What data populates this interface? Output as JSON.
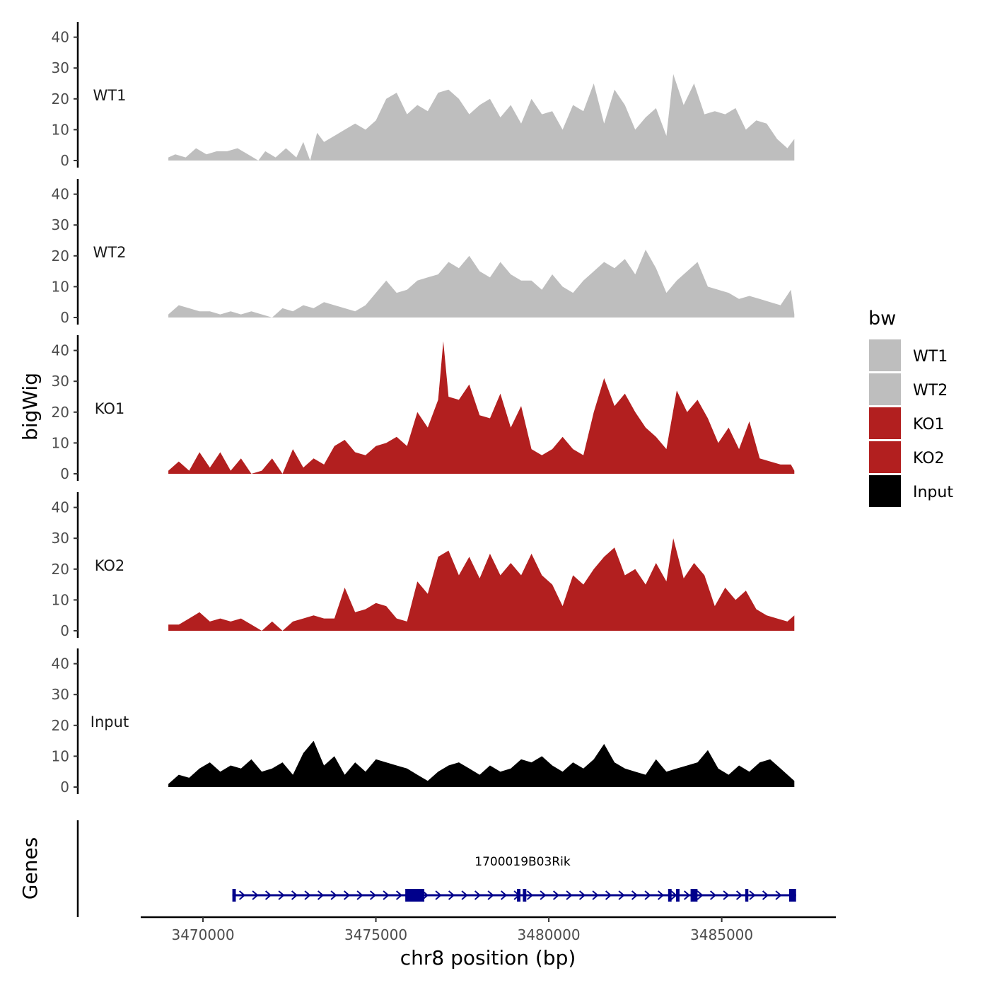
{
  "chart_data": {
    "type": "area",
    "title": "",
    "xlabel": "chr8 position (bp)",
    "ylabel": "bigWig",
    "genes_label": "Genes",
    "chromosome": "chr8",
    "xlim": [
      3468200,
      3488300
    ],
    "ylim": [
      0,
      45
    ],
    "y_ticks": [
      "0",
      "10",
      "20",
      "30",
      "40"
    ],
    "x_ticks": [
      {
        "value": 3470000,
        "label": "3470000"
      },
      {
        "value": 3475000,
        "label": "3475000"
      },
      {
        "value": 3480000,
        "label": "3480000"
      },
      {
        "value": 3485000,
        "label": "3485000"
      }
    ],
    "legend": {
      "title": "bw",
      "position": "right",
      "entries": [
        {
          "label": "WT1",
          "color": "#bebebe"
        },
        {
          "label": "WT2",
          "color": "#bebebe"
        },
        {
          "label": "KO1",
          "color": "#b21f1f"
        },
        {
          "label": "KO2",
          "color": "#b21f1f"
        },
        {
          "label": "Input",
          "color": "#000000"
        }
      ]
    },
    "tracks": [
      {
        "name": "WT1",
        "label": "WT1",
        "color": "#bebebe",
        "x": [
          3469000,
          3469200,
          3469500,
          3469800,
          3470100,
          3470400,
          3470700,
          3471000,
          3471300,
          3471600,
          3471800,
          3472100,
          3472400,
          3472700,
          3472900,
          3473100,
          3473300,
          3473500,
          3473800,
          3474100,
          3474400,
          3474700,
          3475000,
          3475300,
          3475600,
          3475900,
          3476200,
          3476500,
          3476800,
          3477100,
          3477400,
          3477700,
          3478000,
          3478300,
          3478600,
          3478900,
          3479200,
          3479500,
          3479800,
          3480100,
          3480400,
          3480700,
          3481000,
          3481300,
          3481600,
          3481900,
          3482200,
          3482500,
          3482800,
          3483100,
          3483400,
          3483600,
          3483900,
          3484200,
          3484500,
          3484800,
          3485100,
          3485400,
          3485700,
          3486000,
          3486300,
          3486600,
          3486900,
          3487100
        ],
        "values": [
          1,
          2,
          1,
          4,
          2,
          3,
          3,
          4,
          2,
          0,
          3,
          1,
          4,
          1,
          6,
          0,
          9,
          6,
          8,
          10,
          12,
          10,
          13,
          20,
          22,
          15,
          18,
          16,
          22,
          23,
          20,
          15,
          18,
          20,
          14,
          18,
          12,
          20,
          15,
          16,
          10,
          18,
          16,
          25,
          12,
          23,
          18,
          10,
          14,
          17,
          8,
          28,
          18,
          25,
          15,
          16,
          15,
          17,
          10,
          13,
          12,
          7,
          4,
          7
        ]
      },
      {
        "name": "WT2",
        "label": "WT2",
        "color": "#bebebe",
        "x": [
          3469000,
          3469300,
          3469600,
          3469900,
          3470200,
          3470500,
          3470800,
          3471100,
          3471400,
          3471700,
          3472000,
          3472300,
          3472600,
          3472900,
          3473200,
          3473500,
          3473800,
          3474100,
          3474400,
          3474700,
          3475000,
          3475300,
          3475600,
          3475900,
          3476200,
          3476500,
          3476800,
          3477100,
          3477400,
          3477700,
          3478000,
          3478300,
          3478600,
          3478900,
          3479200,
          3479500,
          3479800,
          3480100,
          3480400,
          3480700,
          3481000,
          3481300,
          3481600,
          3481900,
          3482200,
          3482500,
          3482800,
          3483100,
          3483400,
          3483700,
          3484000,
          3484300,
          3484600,
          3484900,
          3485200,
          3485500,
          3485800,
          3486100,
          3486400,
          3486700,
          3487000,
          3487100
        ],
        "values": [
          1,
          4,
          3,
          2,
          2,
          1,
          2,
          1,
          2,
          1,
          0,
          3,
          2,
          4,
          3,
          5,
          4,
          3,
          2,
          4,
          8,
          12,
          8,
          9,
          12,
          13,
          14,
          18,
          16,
          20,
          15,
          13,
          18,
          14,
          12,
          12,
          9,
          14,
          10,
          8,
          12,
          15,
          18,
          16,
          19,
          14,
          22,
          16,
          8,
          12,
          15,
          18,
          10,
          9,
          8,
          6,
          7,
          6,
          5,
          4,
          9,
          1
        ]
      },
      {
        "name": "KO1",
        "label": "KO1",
        "color": "#b21f1f",
        "x": [
          3469000,
          3469300,
          3469600,
          3469900,
          3470200,
          3470500,
          3470800,
          3471100,
          3471400,
          3471700,
          3472000,
          3472300,
          3472600,
          3472900,
          3473200,
          3473500,
          3473800,
          3474100,
          3474400,
          3474700,
          3475000,
          3475300,
          3475600,
          3475900,
          3476200,
          3476500,
          3476800,
          3476950,
          3477100,
          3477400,
          3477700,
          3478000,
          3478300,
          3478600,
          3478900,
          3479200,
          3479500,
          3479800,
          3480100,
          3480400,
          3480700,
          3481000,
          3481300,
          3481600,
          3481900,
          3482200,
          3482500,
          3482800,
          3483100,
          3483400,
          3483700,
          3484000,
          3484300,
          3484600,
          3484900,
          3485200,
          3485500,
          3485800,
          3486100,
          3486400,
          3486700,
          3487000,
          3487100
        ],
        "values": [
          1,
          4,
          1,
          7,
          2,
          7,
          1,
          5,
          0,
          1,
          5,
          0,
          8,
          2,
          5,
          3,
          9,
          11,
          7,
          6,
          9,
          10,
          12,
          9,
          20,
          15,
          24,
          43,
          25,
          24,
          29,
          19,
          18,
          26,
          15,
          22,
          8,
          6,
          8,
          12,
          8,
          6,
          20,
          31,
          22,
          26,
          20,
          15,
          12,
          8,
          27,
          20,
          24,
          18,
          10,
          15,
          8,
          17,
          5,
          4,
          3,
          3,
          1
        ]
      },
      {
        "name": "KO2",
        "label": "KO2",
        "color": "#b21f1f",
        "x": [
          3469000,
          3469300,
          3469600,
          3469900,
          3470200,
          3470500,
          3470800,
          3471100,
          3471400,
          3471700,
          3472000,
          3472300,
          3472600,
          3472900,
          3473200,
          3473500,
          3473800,
          3474100,
          3474400,
          3474700,
          3475000,
          3475300,
          3475600,
          3475900,
          3476200,
          3476500,
          3476800,
          3477100,
          3477400,
          3477700,
          3478000,
          3478300,
          3478600,
          3478900,
          3479200,
          3479500,
          3479800,
          3480100,
          3480400,
          3480700,
          3481000,
          3481300,
          3481600,
          3481900,
          3482200,
          3482500,
          3482800,
          3483100,
          3483400,
          3483600,
          3483900,
          3484200,
          3484500,
          3484800,
          3485100,
          3485400,
          3485700,
          3486000,
          3486300,
          3486600,
          3486900,
          3487100
        ],
        "values": [
          2,
          2,
          4,
          6,
          3,
          4,
          3,
          4,
          2,
          0,
          3,
          0,
          3,
          4,
          5,
          4,
          4,
          14,
          6,
          7,
          9,
          8,
          4,
          3,
          16,
          12,
          24,
          26,
          18,
          24,
          17,
          25,
          18,
          22,
          18,
          25,
          18,
          15,
          8,
          18,
          15,
          20,
          24,
          27,
          18,
          20,
          15,
          22,
          16,
          30,
          17,
          22,
          18,
          8,
          14,
          10,
          13,
          7,
          5,
          4,
          3,
          5
        ]
      },
      {
        "name": "Input",
        "label": "Input",
        "color": "#000000",
        "x": [
          3469000,
          3469300,
          3469600,
          3469900,
          3470200,
          3470500,
          3470800,
          3471100,
          3471400,
          3471700,
          3472000,
          3472300,
          3472600,
          3472900,
          3473200,
          3473500,
          3473800,
          3474100,
          3474400,
          3474700,
          3475000,
          3475300,
          3475600,
          3475900,
          3476200,
          3476500,
          3476800,
          3477100,
          3477400,
          3477700,
          3478000,
          3478300,
          3478600,
          3478900,
          3479200,
          3479500,
          3479800,
          3480100,
          3480400,
          3480700,
          3481000,
          3481300,
          3481600,
          3481900,
          3482200,
          3482500,
          3482800,
          3483100,
          3483400,
          3483700,
          3484000,
          3484300,
          3484600,
          3484900,
          3485200,
          3485500,
          3485800,
          3486100,
          3486400,
          3486700,
          3487000,
          3487100
        ],
        "values": [
          1,
          4,
          3,
          6,
          8,
          5,
          7,
          6,
          9,
          5,
          6,
          8,
          4,
          11,
          15,
          7,
          10,
          4,
          8,
          5,
          9,
          8,
          7,
          6,
          4,
          2,
          5,
          7,
          8,
          6,
          4,
          7,
          5,
          6,
          9,
          8,
          10,
          7,
          5,
          8,
          6,
          9,
          14,
          8,
          6,
          5,
          4,
          9,
          5,
          6,
          7,
          8,
          12,
          6,
          4,
          7,
          5,
          8,
          9,
          6,
          3,
          2
        ]
      }
    ],
    "genes": {
      "name": "1700019B03Rik",
      "color": "#00008b",
      "strand": "+",
      "start": 3470850,
      "end": 3487150,
      "exons": [
        {
          "start": 3470850,
          "end": 3470950
        },
        {
          "start": 3475850,
          "end": 3476400
        },
        {
          "start": 3479080,
          "end": 3479180
        },
        {
          "start": 3479250,
          "end": 3479350
        },
        {
          "start": 3483450,
          "end": 3483550
        },
        {
          "start": 3483680,
          "end": 3483780
        },
        {
          "start": 3484100,
          "end": 3484300
        },
        {
          "start": 3485680,
          "end": 3485770
        },
        {
          "start": 3486950,
          "end": 3487150
        }
      ]
    }
  }
}
